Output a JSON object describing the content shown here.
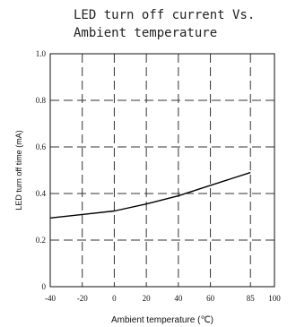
{
  "chart_data": {
    "type": "line",
    "title_lines": [
      "LED turn off current Vs.",
      "Ambient temperature"
    ],
    "xlabel": "Ambient temperature (℃)",
    "ylabel": "LED turn off time (mA)",
    "xlim": [
      -40,
      100
    ],
    "ylim": [
      0,
      1.0
    ],
    "x_tick_values": [
      -40,
      -20,
      0,
      20,
      40,
      60,
      85,
      100
    ],
    "x_tick_labels": [
      "-40",
      "-20",
      "0",
      "20",
      "40",
      "60",
      "85",
      "100"
    ],
    "y_tick_values": [
      0,
      0.2,
      0.4,
      0.6,
      0.8,
      1.0
    ],
    "y_tick_labels": [
      "0",
      "0.2",
      "0.4",
      "0.6",
      "0.8",
      "1.0"
    ],
    "grid": true,
    "grid_style": "dashed",
    "line_color": "#000000",
    "series": [
      {
        "x": [
          -40,
          -20,
          0,
          20,
          40,
          60,
          85
        ],
        "y": [
          0.295,
          0.31,
          0.325,
          0.355,
          0.39,
          0.435,
          0.49
        ]
      }
    ]
  }
}
